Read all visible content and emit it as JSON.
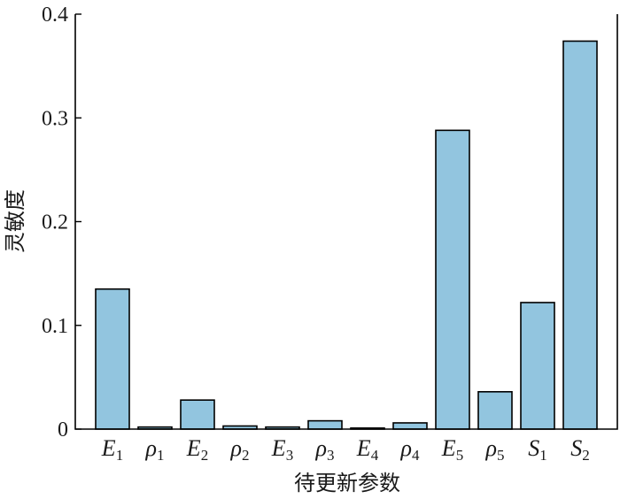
{
  "chart_data": {
    "type": "bar",
    "xlabel": "待更新参数",
    "ylabel": "灵敏度",
    "ylim": [
      0,
      0.4
    ],
    "yticks": [
      "0",
      "0.1",
      "0.2",
      "0.3",
      "0.4"
    ],
    "categories": [
      {
        "base": "E",
        "sub": "1"
      },
      {
        "base": "ρ",
        "sub": "1"
      },
      {
        "base": "E",
        "sub": "2"
      },
      {
        "base": "ρ",
        "sub": "2"
      },
      {
        "base": "E",
        "sub": "3"
      },
      {
        "base": "ρ",
        "sub": "3"
      },
      {
        "base": "E",
        "sub": "4"
      },
      {
        "base": "ρ",
        "sub": "4"
      },
      {
        "base": "E",
        "sub": "5"
      },
      {
        "base": "ρ",
        "sub": "5"
      },
      {
        "base": "S",
        "sub": "1"
      },
      {
        "base": "S",
        "sub": "2"
      }
    ],
    "values": [
      0.135,
      0.002,
      0.028,
      0.003,
      0.002,
      0.008,
      0.001,
      0.006,
      0.288,
      0.036,
      0.122,
      0.374
    ],
    "colors": {
      "bar_fill": "#92c5df",
      "bar_stroke": "#000000"
    },
    "grid": false
  }
}
